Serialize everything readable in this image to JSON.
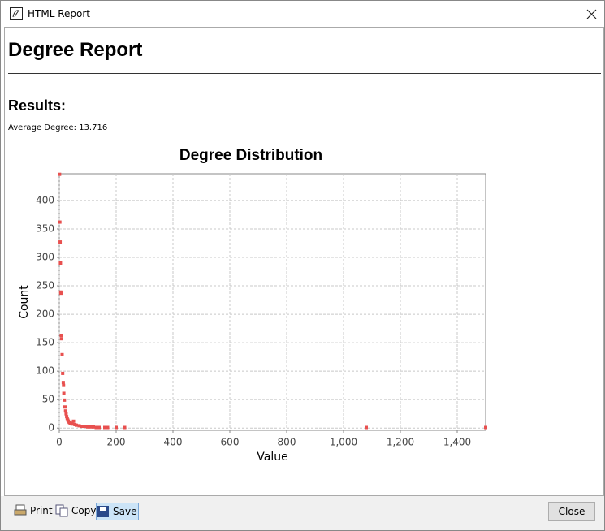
{
  "window": {
    "title": "HTML Report"
  },
  "header": {
    "title": "Degree Report"
  },
  "results": {
    "heading": "Results:",
    "average_degree": "Average Degree: 13.716"
  },
  "chart_data": {
    "type": "scatter",
    "title": "Degree Distribution",
    "x_label": "Value",
    "y_label": "Count",
    "x": [
      1,
      2,
      3,
      4,
      5,
      6,
      7,
      8,
      10,
      12,
      14,
      15,
      16,
      18,
      20,
      22,
      24,
      26,
      28,
      30,
      32,
      35,
      38,
      40,
      45,
      50,
      55,
      60,
      70,
      80,
      90,
      100,
      110,
      120,
      130,
      140,
      160,
      170,
      200,
      230,
      1080,
      1500
    ],
    "values": [
      446,
      362,
      327,
      290,
      239,
      237,
      163,
      157,
      129,
      96,
      80,
      75,
      61,
      49,
      37,
      30,
      25,
      20,
      17,
      14,
      12,
      10,
      9,
      8,
      7,
      12,
      6,
      5,
      4,
      3,
      3,
      2,
      2,
      2,
      1,
      1,
      1,
      1,
      1,
      1,
      1,
      1
    ],
    "color": "#e8504f",
    "xlim": [
      0,
      1500
    ],
    "ylim": [
      -4,
      447
    ],
    "xticks": [
      0,
      200,
      400,
      600,
      800,
      {
        "value": 1000,
        "label": "1,000"
      },
      {
        "value": 1200,
        "label": "1,200"
      },
      {
        "value": 1400,
        "label": "1,400"
      }
    ],
    "yticks": [
      0,
      50,
      100,
      150,
      200,
      250,
      300,
      350,
      400
    ],
    "grid": true
  },
  "toolbar": {
    "print": "Print",
    "copy": "Copy",
    "save": "Save",
    "close": "Close"
  }
}
